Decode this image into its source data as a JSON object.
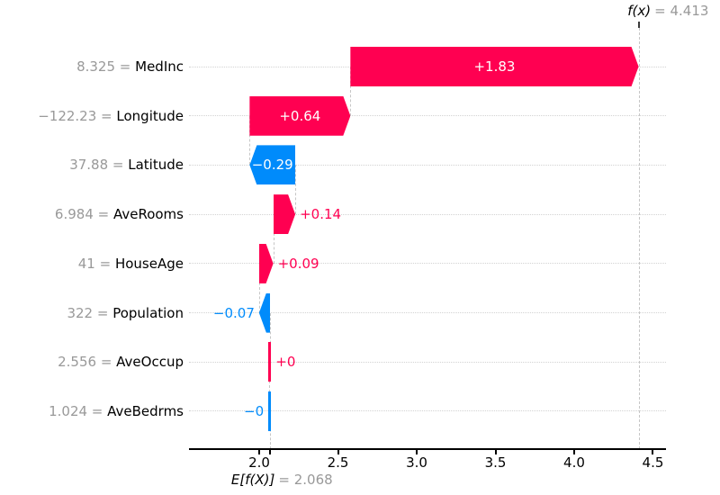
{
  "chart_data": {
    "type": "bar",
    "variant": "shap-waterfall",
    "title": "",
    "xlabel": "",
    "ylabel": "",
    "fx_label": "f(x)",
    "fx_value": 4.413,
    "fx_value_text": "= 4.413",
    "base_label": "E[f(X)]",
    "base_value": 2.068,
    "base_value_text": "= 2.068",
    "xlim": [
      1.554,
      4.583
    ],
    "xticks": [
      2.0,
      2.5,
      3.0,
      3.5,
      4.0,
      4.5
    ],
    "xtick_labels": [
      "2.0",
      "2.5",
      "3.0",
      "3.5",
      "4.0",
      "4.5"
    ],
    "grid": "horizontal-dotted",
    "legend": "none",
    "colors": {
      "positive": "#ff0051",
      "negative": "#008bfb",
      "muted_text": "#999999",
      "grid": "#d2d2d2",
      "dashed": "#c6c6c6",
      "axis": "#000000",
      "bar_inner_text": "#ffffff"
    },
    "features": [
      {
        "name": "MedInc",
        "value_text": "8.325",
        "separator": "=",
        "shap": 1.83,
        "shap_label": "+1.83"
      },
      {
        "name": "Longitude",
        "value_text": "−122.23",
        "separator": "=",
        "shap": 0.64,
        "shap_label": "+0.64"
      },
      {
        "name": "Latitude",
        "value_text": "37.88",
        "separator": "=",
        "shap": -0.29,
        "shap_label": "−0.29"
      },
      {
        "name": "AveRooms",
        "value_text": "6.984",
        "separator": "=",
        "shap": 0.14,
        "shap_label": "+0.14"
      },
      {
        "name": "HouseAge",
        "value_text": "41",
        "separator": "=",
        "shap": 0.09,
        "shap_label": "+0.09"
      },
      {
        "name": "Population",
        "value_text": "322",
        "separator": "=",
        "shap": -0.07,
        "shap_label": "−0.07"
      },
      {
        "name": "AveOccup",
        "value_text": "2.556",
        "separator": "=",
        "shap": 0.004,
        "shap_label": "+0"
      },
      {
        "name": "AveBedrms",
        "value_text": "1.024",
        "separator": "=",
        "shap": -0.003,
        "shap_label": "−0"
      }
    ]
  }
}
